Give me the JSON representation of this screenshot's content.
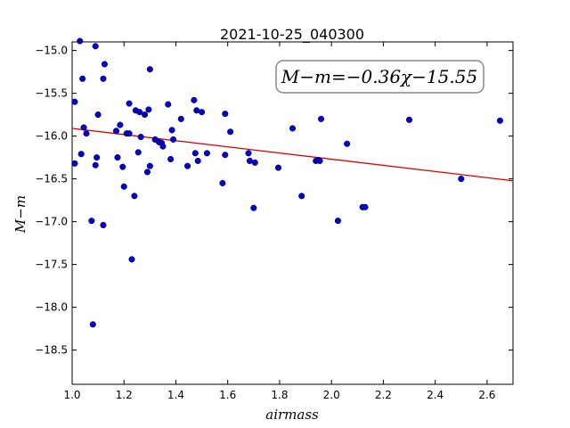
{
  "chart_data": {
    "type": "scatter",
    "title": "2021-10-25_040300",
    "xlabel": "airmass",
    "ylabel": "M−m",
    "xlim": [
      1.0,
      2.7
    ],
    "ylim": [
      -18.9,
      -14.9
    ],
    "y_inverted": true,
    "grid": false,
    "x_ticks": [
      1.0,
      1.2,
      1.4,
      1.6,
      1.8,
      2.0,
      2.2,
      2.4,
      2.6
    ],
    "x_tick_labels": [
      "1.0",
      "1.2",
      "1.4",
      "1.6",
      "1.8",
      "2.0",
      "2.2",
      "2.4",
      "2.6"
    ],
    "y_ticks": [
      -15.0,
      -15.5,
      -16.0,
      -16.5,
      -17.0,
      -17.5,
      -18.0,
      -18.5
    ],
    "y_tick_labels": [
      "−15.0",
      "−15.5",
      "−16.0",
      "−16.5",
      "−17.0",
      "−17.5",
      "−18.0",
      "−18.5"
    ],
    "annotation": "M−m=−0.36χ−15.55",
    "marker_color": "#0000cc",
    "line_color": "#dd0000",
    "fit": {
      "slope": -0.36,
      "intercept": -15.55
    },
    "points": [
      [
        1.01,
        -15.6
      ],
      [
        1.01,
        -16.32
      ],
      [
        1.03,
        -14.89
      ],
      [
        1.035,
        -16.21
      ],
      [
        1.04,
        -15.33
      ],
      [
        1.045,
        -15.9
      ],
      [
        1.055,
        -15.97
      ],
      [
        1.075,
        -16.99
      ],
      [
        1.08,
        -18.2
      ],
      [
        1.09,
        -14.95
      ],
      [
        1.09,
        -16.34
      ],
      [
        1.095,
        -16.25
      ],
      [
        1.1,
        -15.75
      ],
      [
        1.12,
        -17.04
      ],
      [
        1.12,
        -15.33
      ],
      [
        1.125,
        -15.16
      ],
      [
        1.17,
        -15.94
      ],
      [
        1.175,
        -16.25
      ],
      [
        1.185,
        -15.87
      ],
      [
        1.195,
        -16.36
      ],
      [
        1.2,
        -16.59
      ],
      [
        1.21,
        -15.97
      ],
      [
        1.22,
        -15.97
      ],
      [
        1.22,
        -15.62
      ],
      [
        1.23,
        -17.44
      ],
      [
        1.24,
        -16.7
      ],
      [
        1.245,
        -15.7
      ],
      [
        1.255,
        -16.19
      ],
      [
        1.26,
        -15.72
      ],
      [
        1.265,
        -16.01
      ],
      [
        1.28,
        -15.75
      ],
      [
        1.29,
        -16.42
      ],
      [
        1.295,
        -15.69
      ],
      [
        1.3,
        -16.35
      ],
      [
        1.3,
        -15.22
      ],
      [
        1.32,
        -16.04
      ],
      [
        1.335,
        -16.07
      ],
      [
        1.345,
        -16.08
      ],
      [
        1.35,
        -16.12
      ],
      [
        1.37,
        -15.63
      ],
      [
        1.38,
        -16.27
      ],
      [
        1.385,
        -15.93
      ],
      [
        1.39,
        -16.04
      ],
      [
        1.42,
        -15.8
      ],
      [
        1.445,
        -16.35
      ],
      [
        1.47,
        -15.58
      ],
      [
        1.475,
        -16.2
      ],
      [
        1.48,
        -15.7
      ],
      [
        1.485,
        -16.29
      ],
      [
        1.5,
        -15.72
      ],
      [
        1.52,
        -16.2
      ],
      [
        1.58,
        -16.55
      ],
      [
        1.59,
        -16.22
      ],
      [
        1.59,
        -15.74
      ],
      [
        1.61,
        -15.95
      ],
      [
        1.68,
        -16.2
      ],
      [
        1.685,
        -16.29
      ],
      [
        1.7,
        -16.84
      ],
      [
        1.705,
        -16.31
      ],
      [
        1.795,
        -16.37
      ],
      [
        1.85,
        -15.91
      ],
      [
        1.885,
        -16.7
      ],
      [
        1.94,
        -16.29
      ],
      [
        1.95,
        -16.28
      ],
      [
        1.955,
        -16.29
      ],
      [
        1.96,
        -15.8
      ],
      [
        2.025,
        -16.99
      ],
      [
        2.06,
        -16.09
      ],
      [
        2.12,
        -16.83
      ],
      [
        2.13,
        -16.83
      ],
      [
        2.3,
        -15.81
      ],
      [
        2.5,
        -16.5
      ],
      [
        2.65,
        -15.82
      ]
    ]
  }
}
